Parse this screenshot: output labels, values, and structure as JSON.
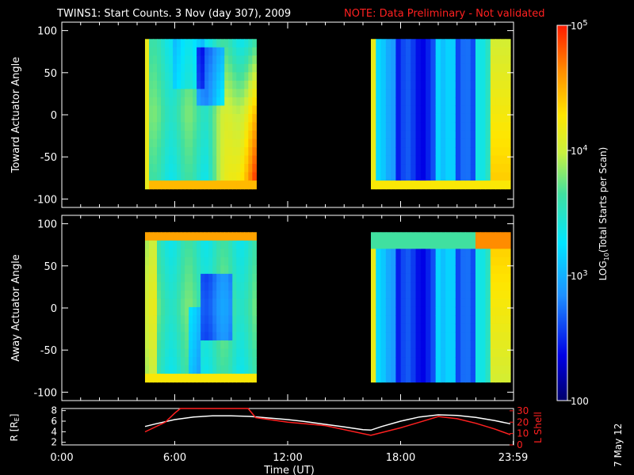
{
  "title": {
    "main": "TWINS1: Start Counts.  3 Nov (day 307), 2009",
    "note": "NOTE: Data Preliminary - Not validated"
  },
  "stamp": "7 May 12",
  "colors": {
    "background": "#000000",
    "axis": "#ffffff",
    "note": "#ff2020",
    "lshell": "#ff2020",
    "r_line": "#ffffff"
  },
  "chart_data": [
    {
      "type": "heatmap",
      "panel": "toward",
      "ylabel": "Toward Actuator Angle",
      "ylim": [
        -110,
        110
      ],
      "yticks": [
        100,
        50,
        0,
        -50,
        -100
      ],
      "xlim": [
        0,
        24
      ],
      "data_blocks": [
        {
          "x_start": 4.42,
          "x_end": 10.33,
          "y_start": -88,
          "y_end": 90
        },
        {
          "x_start": 16.42,
          "x_end": 23.83,
          "y_start": -88,
          "y_end": 90
        }
      ]
    },
    {
      "type": "heatmap",
      "panel": "away",
      "ylabel": "Away Actuator Angle",
      "ylim": [
        -110,
        110
      ],
      "yticks": [
        100,
        50,
        0,
        -50,
        -100
      ],
      "xlim": [
        0,
        24
      ],
      "data_blocks": [
        {
          "x_start": 4.42,
          "x_end": 10.33,
          "y_start": -88,
          "y_end": 90
        },
        {
          "x_start": 16.42,
          "x_end": 23.83,
          "y_start": -88,
          "y_end": 90
        }
      ]
    },
    {
      "type": "line",
      "panel": "orbit",
      "ylabel": "R [RE]",
      "ylabel_sub": "E",
      "y2label": "L Shell",
      "xlabel": "Time (UT)",
      "xtick_labels": [
        "0:00",
        "6:00",
        "12:00",
        "18:00",
        "23:59"
      ],
      "xtick_values": [
        0,
        6,
        12,
        18,
        23.98
      ],
      "ylim": [
        1.5,
        8.4
      ],
      "yticks": [
        2,
        4,
        6,
        8
      ],
      "y2lim": [
        0,
        32
      ],
      "y2ticks": [
        0,
        10,
        20,
        30
      ],
      "xlim": [
        0,
        24
      ],
      "series": [
        {
          "axis": "left",
          "x": [
            4.42,
            5.0,
            6.0,
            7.0,
            8.0,
            9.0,
            10.0,
            11.0,
            12.0,
            13.0,
            14.0,
            15.0,
            16.0,
            16.42,
            17.0,
            18.0,
            19.0,
            20.0,
            21.0,
            22.0,
            23.0,
            23.83
          ],
          "values": [
            5.0,
            5.5,
            6.3,
            6.8,
            7.0,
            7.0,
            6.9,
            6.6,
            6.3,
            5.9,
            5.4,
            4.9,
            4.4,
            4.3,
            5.0,
            6.0,
            6.8,
            7.2,
            7.1,
            6.7,
            6.1,
            5.5
          ]
        },
        {
          "axis": "right",
          "x": [
            4.42,
            5.5,
            6.0,
            6.3,
            9.0,
            9.9,
            10.3,
            12.0,
            14.0,
            16.42,
            18.0,
            19.0,
            20.0,
            21.0,
            22.0,
            23.0,
            23.83
          ],
          "values": [
            11.5,
            20,
            28,
            33,
            33,
            33,
            24,
            20,
            17,
            8.5,
            15,
            20,
            25,
            23,
            19,
            14,
            9
          ]
        }
      ]
    },
    {
      "type": "colorbar",
      "label": "LOG10(Total Starts per Scan)",
      "label_parts": [
        "LOG",
        "10",
        "(Total Starts per Scan)"
      ],
      "scale": "log",
      "range": [
        100,
        100000
      ],
      "tick_labels": [
        {
          "value": 100000,
          "base": "10",
          "exp": "5"
        },
        {
          "value": 10000,
          "base": "10",
          "exp": "4"
        },
        {
          "value": 1000,
          "base": "10",
          "exp": "3"
        },
        {
          "value": 100,
          "base": "100",
          "exp": ""
        }
      ]
    }
  ]
}
